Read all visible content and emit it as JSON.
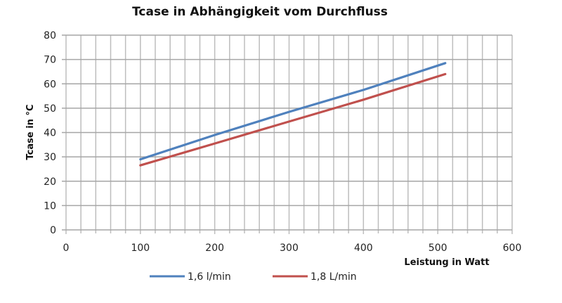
{
  "chart_data": {
    "type": "line",
    "title": "Tcase in Abhängigkeit vom Durchfluss",
    "xlabel": "Leistung in Watt",
    "ylabel": "Tcase in °C",
    "xlim": [
      0,
      600
    ],
    "ylim": [
      0,
      80
    ],
    "x_ticks": [
      0,
      100,
      200,
      300,
      400,
      500,
      600
    ],
    "y_ticks": [
      0,
      10,
      20,
      30,
      40,
      50,
      60,
      70,
      80
    ],
    "x_minor_grid_step": 20,
    "grid": true,
    "legend_position": "bottom",
    "series": [
      {
        "name": "1,6 l/min",
        "color": "#4F81BD",
        "x": [
          100,
          200,
          300,
          400,
          510
        ],
        "values": [
          29,
          39,
          48.5,
          57.5,
          68.5
        ]
      },
      {
        "name": "1,8 L/min",
        "color": "#C0504D",
        "x": [
          100,
          200,
          300,
          400,
          510
        ],
        "values": [
          26.5,
          35.5,
          44.5,
          53.5,
          64
        ]
      }
    ]
  }
}
